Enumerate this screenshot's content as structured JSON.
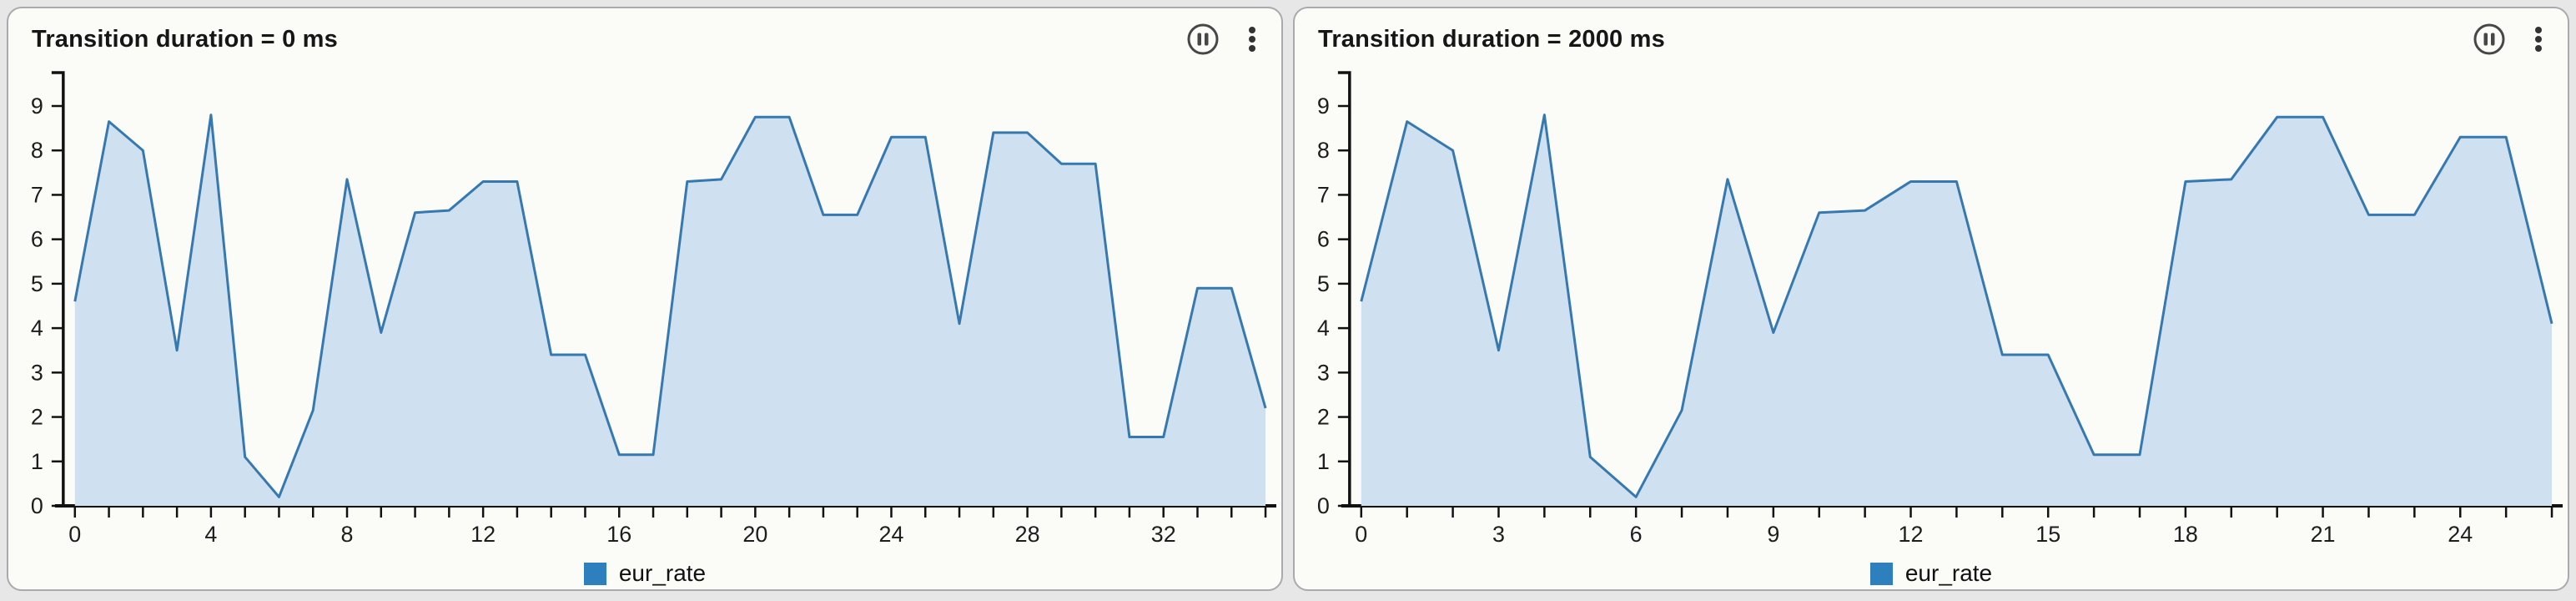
{
  "page": {
    "background": "#e7e7e7"
  },
  "colors": {
    "line": "#3678b0",
    "fill": "#cfe1f1",
    "axis": "#111111",
    "tick_label": "#1d1d1d",
    "icon": "#474747"
  },
  "panels": [
    {
      "title": "Transition duration = 0 ms",
      "icons": [
        {
          "name": "pause-circle-icon"
        },
        {
          "name": "kebab-menu-icon"
        }
      ],
      "legend": {
        "label": "eur_rate",
        "swatch_color": "#2e7fbd"
      }
    },
    {
      "title": "Transition duration = 2000 ms",
      "icons": [
        {
          "name": "pause-circle-icon"
        },
        {
          "name": "kebab-menu-icon"
        }
      ],
      "legend": {
        "label": "eur_rate",
        "swatch_color": "#2e7fbd"
      }
    }
  ],
  "chart_data": [
    {
      "type": "area",
      "series_name": "eur_rate",
      "x": [
        0,
        1,
        2,
        3,
        4,
        5,
        6,
        7,
        8,
        9,
        10,
        11,
        12,
        13,
        14,
        15,
        16,
        17,
        18,
        19,
        20,
        21,
        22,
        23,
        24,
        25,
        26,
        27,
        28,
        29,
        30,
        31,
        32,
        33,
        34,
        35
      ],
      "values": [
        4.6,
        8.65,
        8.0,
        3.5,
        8.8,
        1.1,
        0.2,
        2.15,
        7.35,
        3.9,
        6.6,
        6.65,
        7.3,
        7.3,
        3.4,
        3.4,
        1.15,
        1.15,
        7.3,
        7.35,
        8.75,
        8.75,
        6.55,
        6.55,
        8.3,
        8.3,
        4.1,
        8.4,
        8.4,
        7.7,
        7.7,
        1.55,
        1.55,
        4.9,
        4.9,
        2.2
      ],
      "title": "Transition duration = 0 ms",
      "xlabel": "",
      "ylabel": "",
      "xlim": [
        0,
        35
      ],
      "ylim": [
        0,
        9
      ],
      "x_tick_step": 1,
      "x_label_step": 4,
      "y_tick_step": 1,
      "grid": false,
      "legend_position": "bottom-center",
      "line_color": "#3678b0",
      "fill_color": "#cfe1f1"
    },
    {
      "type": "area",
      "series_name": "eur_rate",
      "x": [
        0,
        1,
        2,
        3,
        4,
        5,
        6,
        7,
        8,
        9,
        10,
        11,
        12,
        13,
        14,
        15,
        16,
        17,
        18,
        19,
        20,
        21,
        22,
        23,
        24,
        25,
        26
      ],
      "values": [
        4.6,
        8.65,
        8.0,
        3.5,
        8.8,
        1.1,
        0.2,
        2.15,
        7.35,
        3.9,
        6.6,
        6.65,
        7.3,
        7.3,
        3.4,
        3.4,
        1.15,
        1.15,
        7.3,
        7.35,
        8.75,
        8.75,
        6.55,
        6.55,
        8.3,
        8.3,
        4.1
      ],
      "title": "Transition duration = 2000 ms",
      "xlabel": "",
      "ylabel": "",
      "xlim": [
        0,
        26
      ],
      "ylim": [
        0,
        9
      ],
      "x_tick_step": 1,
      "x_label_step": 3,
      "y_tick_step": 1,
      "grid": false,
      "legend_position": "bottom-center",
      "line_color": "#3678b0",
      "fill_color": "#cfe1f1"
    }
  ]
}
